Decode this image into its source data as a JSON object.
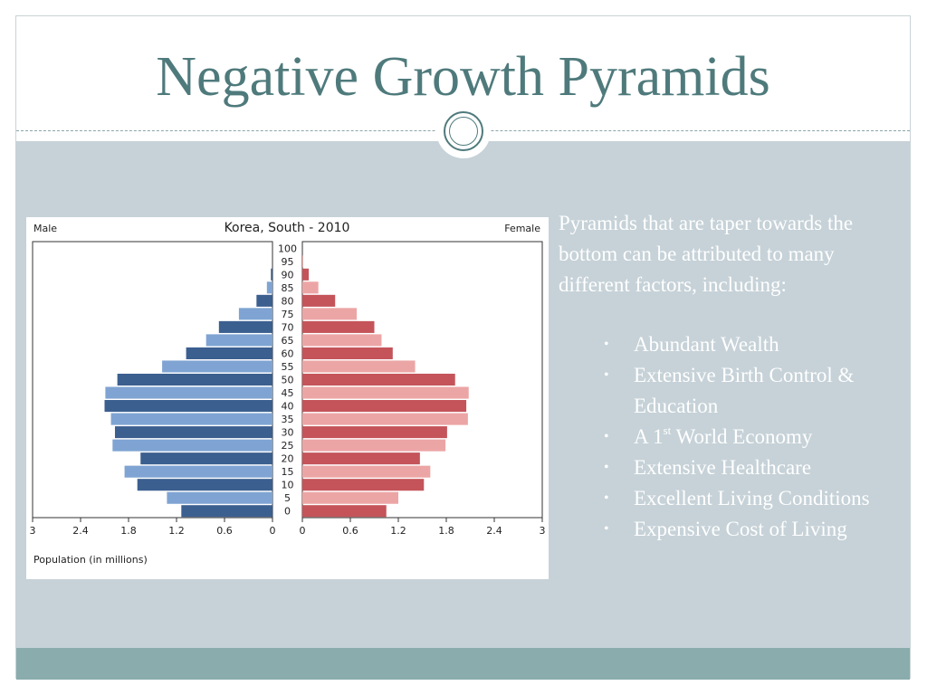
{
  "slide": {
    "title": "Negative Growth Pyramids",
    "description": "Pyramids that are taper towards the bottom can be attributed to many different factors, including:",
    "bullets": [
      {
        "before": "Abundant Wealth"
      },
      {
        "before": "Extensive Birth Control & Education"
      },
      {
        "before": "A 1",
        "sup": "st",
        "after": " World Economy"
      },
      {
        "before": "Extensive Healthcare"
      },
      {
        "before": "Excellent Living Conditions"
      },
      {
        "before": "Expensive Cost of  Living"
      }
    ],
    "colors": {
      "title": "#4f7a7c",
      "content_bg": "#c6d2d8",
      "bottom_band": "#8aacac"
    }
  },
  "chart_data": {
    "type": "bar",
    "title": "Korea, South - 2010",
    "left_label": "Male",
    "right_label": "Female",
    "xlabel": "Population (in millions)",
    "age_groups": [
      "0",
      "5",
      "10",
      "15",
      "20",
      "25",
      "30",
      "35",
      "40",
      "45",
      "50",
      "55",
      "60",
      "65",
      "70",
      "75",
      "80",
      "85",
      "90",
      "95",
      "100"
    ],
    "x_ticks_left": [
      "3",
      "2.4",
      "1.8",
      "1.2",
      "0.6",
      "0"
    ],
    "x_ticks_right": [
      "0",
      "0.6",
      "1.2",
      "1.8",
      "2.4",
      "3"
    ],
    "xlim": [
      0,
      3
    ],
    "series": [
      {
        "name": "Male",
        "values": [
          1.14,
          1.32,
          1.69,
          1.85,
          1.65,
          2.0,
          1.97,
          2.02,
          2.1,
          2.09,
          1.94,
          1.38,
          1.08,
          0.83,
          0.67,
          0.42,
          0.2,
          0.07,
          0.02,
          0.0,
          0.0
        ]
      },
      {
        "name": "Female",
        "values": [
          1.05,
          1.2,
          1.52,
          1.6,
          1.47,
          1.79,
          1.81,
          2.07,
          2.05,
          2.08,
          1.91,
          1.41,
          1.13,
          0.99,
          0.9,
          0.68,
          0.41,
          0.2,
          0.08,
          0.01,
          0.0
        ]
      }
    ],
    "colors": {
      "male_dark": "#3b5f8f",
      "male_light": "#7fa4d3",
      "female_dark": "#c4545a",
      "female_light": "#eca5a5"
    }
  }
}
